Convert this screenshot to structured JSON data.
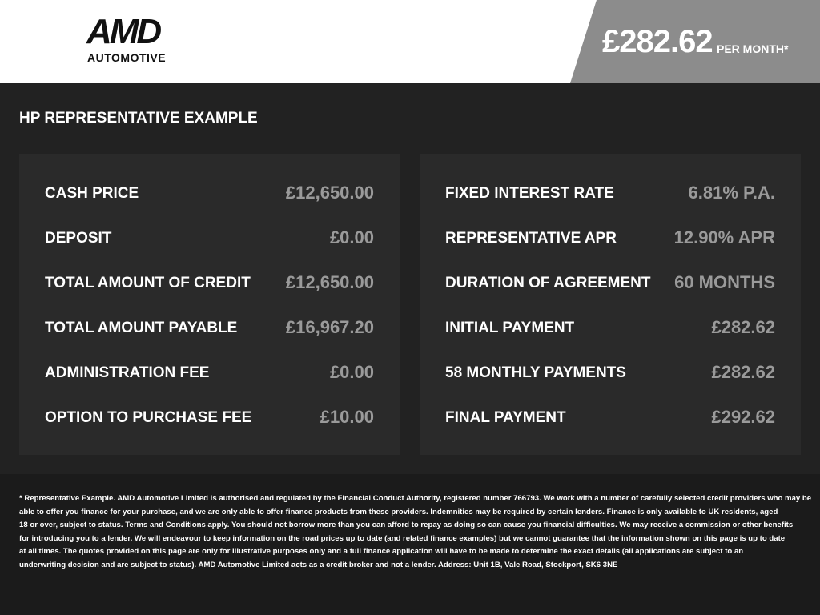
{
  "header": {
    "logo_top": "AMD",
    "logo_bottom": "AUTOMOTIVE",
    "price": "£282.62",
    "price_suffix": "PER MONTH*"
  },
  "section_title": "HP REPRESENTATIVE EXAMPLE",
  "left_table": {
    "rows": [
      [
        "CASH PRICE",
        "£12,650.00"
      ],
      [
        "DEPOSIT",
        "£0.00"
      ],
      [
        "TOTAL AMOUNT OF CREDIT",
        "£12,650.00"
      ],
      [
        "TOTAL AMOUNT PAYABLE",
        "£16,967.20"
      ],
      [
        "ADMINISTRATION FEE",
        "£0.00"
      ],
      [
        "OPTION TO PURCHASE FEE",
        "£10.00"
      ]
    ]
  },
  "right_table": {
    "rows": [
      [
        "FIXED INTEREST RATE",
        "6.81% P.A."
      ],
      [
        "REPRESENTATIVE APR",
        "12.90% APR"
      ],
      [
        "DURATION OF AGREEMENT",
        "60 MONTHS"
      ],
      [
        "INITIAL PAYMENT",
        "£282.62"
      ],
      [
        "58 MONTHLY PAYMENTS",
        "£282.62"
      ],
      [
        "FINAL PAYMENT",
        "£292.62"
      ]
    ]
  },
  "disclaimer": {
    "lines": [
      "* Representative Example. AMD Automotive Limited is authorised and regulated by the Financial Conduct Authority, registered number 766793. We work with a number of carefully selected credit providers who may be",
      "able to offer you finance for your purchase, and we are only able to offer finance products from these providers. Indemnities may be required by certain lenders. Finance is only available to UK residents, aged",
      "18 or over, subject to status. Terms and Conditions apply. You should not borrow more than you can afford to repay as doing so can cause you financial difficulties. We may receive a commission or other benefits",
      "for introducing you to a lender. We will endeavour to keep information on the road prices up to date (and related finance examples) but we cannot guarantee that the information shown on this page is up to date",
      "at all times. The quotes provided on this page are only for illustrative purposes only and a full finance application will have to be made to determine the exact details (all applications are subject to an",
      "underwriting decision and are subject to status). AMD Automotive Limited acts as a credit broker and not a lender. Address: Unit 1B, Vale Road, Stockport, SK6 3NE"
    ]
  }
}
